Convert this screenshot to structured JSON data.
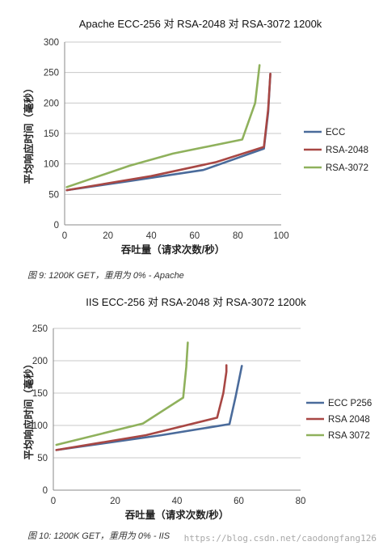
{
  "chart_data": [
    {
      "type": "line",
      "title": "Apache ECC-256 对 RSA-2048 对 RSA-3072 1200k",
      "xlabel": "吞吐量（请求次数/秒）",
      "ylabel": "平均响应时间（毫秒）",
      "xlim": [
        0,
        100
      ],
      "ylim": [
        0,
        300
      ],
      "x_ticks": [
        0,
        20,
        40,
        60,
        80,
        100
      ],
      "y_ticks": [
        0,
        50,
        100,
        150,
        200,
        250,
        300
      ],
      "grid": true,
      "legend_position": "right",
      "series": [
        {
          "name": "ECC",
          "color": "#4a6b9b",
          "points": [
            [
              1,
              57
            ],
            [
              30,
              72
            ],
            [
              64,
              90
            ],
            [
              92,
              125
            ],
            [
              94,
              185
            ],
            [
              95,
              248
            ]
          ]
        },
        {
          "name": "RSA-2048",
          "color": "#a84744",
          "points": [
            [
              1,
              57
            ],
            [
              40,
              80
            ],
            [
              70,
              103
            ],
            [
              92,
              128
            ],
            [
              94,
              190
            ],
            [
              95,
              248
            ]
          ]
        },
        {
          "name": "RSA-3072",
          "color": "#8fb15c",
          "points": [
            [
              1,
              62
            ],
            [
              30,
              97
            ],
            [
              50,
              117
            ],
            [
              82,
              140
            ],
            [
              88,
              200
            ],
            [
              90,
              262
            ]
          ]
        }
      ]
    },
    {
      "type": "line",
      "title": "IIS ECC-256 对 RSA-2048 对 RSA-3072 1200k",
      "xlabel": "吞吐量（请求次数/秒）",
      "ylabel": "平均响应时间（毫秒）",
      "xlim": [
        0,
        80
      ],
      "ylim": [
        0,
        250
      ],
      "x_ticks": [
        0,
        20,
        40,
        60,
        80
      ],
      "y_ticks": [
        0,
        50,
        100,
        150,
        200,
        250
      ],
      "grid": true,
      "legend_position": "right",
      "series": [
        {
          "name": "ECC P256",
          "color": "#4a6b9b",
          "points": [
            [
              1,
              62
            ],
            [
              35,
              85
            ],
            [
              57,
              102
            ],
            [
              59,
              145
            ],
            [
              61,
              192
            ]
          ]
        },
        {
          "name": "RSA 2048",
          "color": "#a84744",
          "points": [
            [
              1,
              62
            ],
            [
              30,
              85
            ],
            [
              53,
              112
            ],
            [
              55,
              150
            ],
            [
              56,
              183
            ],
            [
              56,
              193
            ]
          ]
        },
        {
          "name": "RSA 3072",
          "color": "#8fb15c",
          "points": [
            [
              1,
              70
            ],
            [
              29,
              103
            ],
            [
              42,
              143
            ],
            [
              43,
              190
            ],
            [
              43.5,
              228
            ]
          ]
        }
      ]
    }
  ],
  "captions": [
    "图 9: 1200K GET，重用为 0% - Apache",
    "图 10: 1200K GET，重用为 0% - IIS"
  ],
  "watermark": "https://blog.csdn.net/caodongfang126"
}
